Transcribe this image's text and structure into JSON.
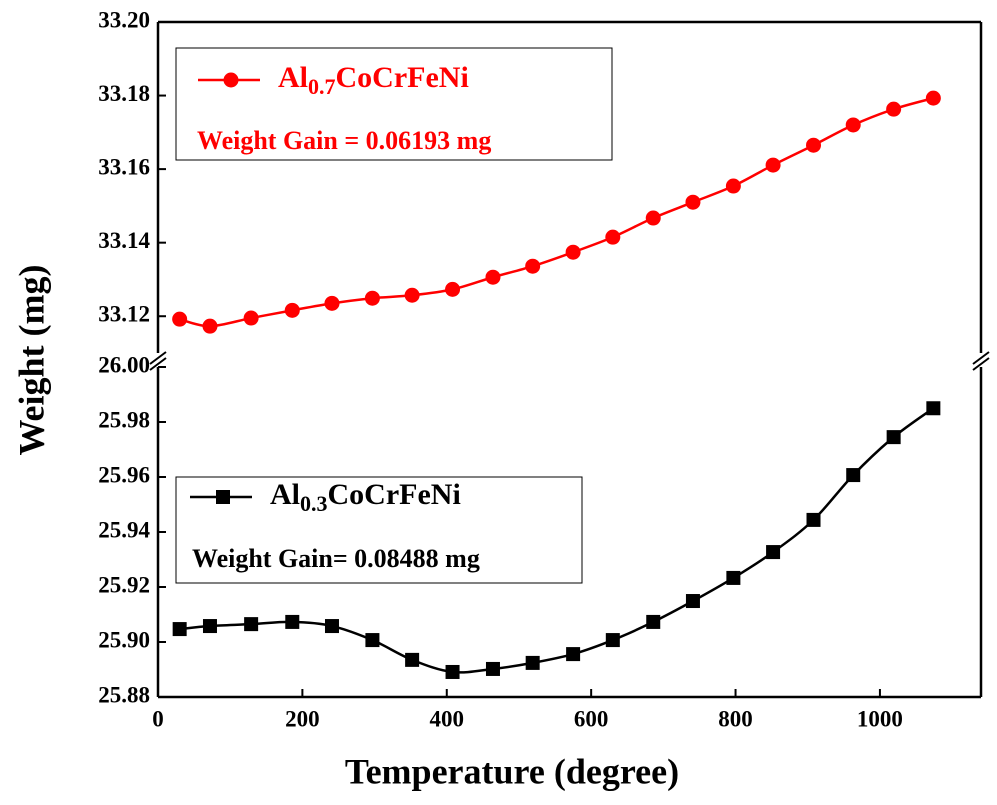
{
  "chart_data": [
    {
      "type": "line",
      "ylabel": "Weight (mg)",
      "xlim": [
        0,
        1140
      ],
      "ylim": [
        33.11,
        33.2
      ],
      "yticks": [
        33.12,
        33.14,
        33.16,
        33.18,
        {
          "value": 33.2,
          "label": "33.20"
        }
      ],
      "x": [
        30,
        72,
        129,
        186,
        241,
        297,
        352,
        408,
        464,
        519,
        575,
        630,
        686,
        741,
        797,
        852,
        908,
        963,
        1019,
        1074
      ],
      "series": [
        {
          "name": "Al0.7CoCrFeNi",
          "color": "#ff0000",
          "marker": "circle",
          "values": [
            33.1192,
            33.1173,
            33.1195,
            33.1216,
            33.1235,
            33.1249,
            33.1257,
            33.1273,
            33.1306,
            33.1336,
            33.1374,
            33.1415,
            33.1467,
            33.151,
            33.1554,
            33.1611,
            33.1665,
            33.172,
            33.1763,
            33.1793
          ]
        }
      ],
      "annotation": "Weight Gain = 0.06193 mg"
    },
    {
      "type": "line",
      "xlabel": "Temperature (degree)",
      "xlim": [
        0,
        1140
      ],
      "xticks": [
        0,
        200,
        400,
        600,
        800,
        1000
      ],
      "ylim": [
        25.88,
        26.0
      ],
      "yticks": [
        25.88,
        {
          "value": 25.9,
          "label": "25.90"
        },
        25.92,
        25.94,
        25.96,
        25.98,
        {
          "value": 26,
          "label": "26.00"
        }
      ],
      "x": [
        30,
        72,
        129,
        186,
        241,
        297,
        352,
        408,
        464,
        519,
        575,
        630,
        686,
        741,
        797,
        852,
        908,
        963,
        1019,
        1074
      ],
      "series": [
        {
          "name": "Al0.3CoCrFeNi",
          "color": "#000000",
          "marker": "square",
          "values": [
            25.9047,
            25.9058,
            25.9065,
            25.9073,
            25.9058,
            25.9007,
            25.8935,
            25.8891,
            25.8902,
            25.8924,
            25.8956,
            25.9007,
            25.9073,
            25.9149,
            25.9233,
            25.9327,
            25.9444,
            25.9607,
            25.9745,
            25.985
          ]
        }
      ],
      "annotation": "Weight Gain= 0.08488 mg"
    }
  ]
}
